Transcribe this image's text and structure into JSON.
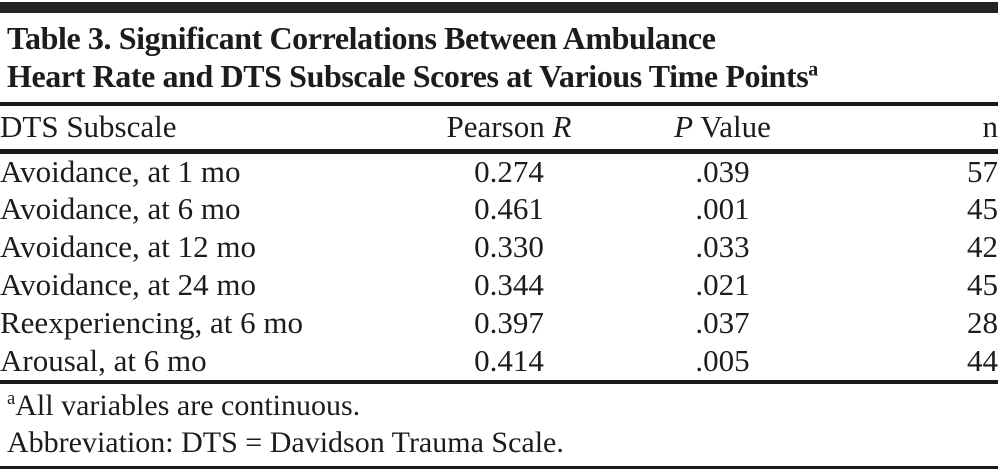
{
  "colors": {
    "background": "#ffffff",
    "text": "#1c1c1c",
    "rule": "#1a1a1a"
  },
  "title": {
    "line1": "Table 3. Significant Correlations Between Ambulance",
    "line2": "Heart Rate and DTS Subscale Scores at Various Time Points",
    "superscript": "a"
  },
  "table": {
    "columns": [
      {
        "label": "DTS Subscale"
      },
      {
        "label_prefix": "Pearson ",
        "label_italic": "R"
      },
      {
        "label_italic": "P",
        "label_suffix": " Value"
      },
      {
        "label": "n"
      }
    ],
    "rows": [
      {
        "subscale": "Avoidance, at 1 mo",
        "pearson_r": "0.274",
        "p_value": ".039",
        "n": "57"
      },
      {
        "subscale": "Avoidance, at 6 mo",
        "pearson_r": "0.461",
        "p_value": ".001",
        "n": "45"
      },
      {
        "subscale": "Avoidance, at 12 mo",
        "pearson_r": "0.330",
        "p_value": ".033",
        "n": "42"
      },
      {
        "subscale": "Avoidance, at 24 mo",
        "pearson_r": "0.344",
        "p_value": ".021",
        "n": "45"
      },
      {
        "subscale": "Reexperiencing, at 6 mo",
        "pearson_r": "0.397",
        "p_value": ".037",
        "n": "28"
      },
      {
        "subscale": "Arousal, at 6 mo",
        "pearson_r": "0.414",
        "p_value": ".005",
        "n": "44"
      }
    ]
  },
  "footnotes": {
    "note_a_superscript": "a",
    "note_a_text": "All variables are continuous.",
    "abbreviation_text": "Abbreviation: DTS = Davidson Trauma Scale."
  }
}
